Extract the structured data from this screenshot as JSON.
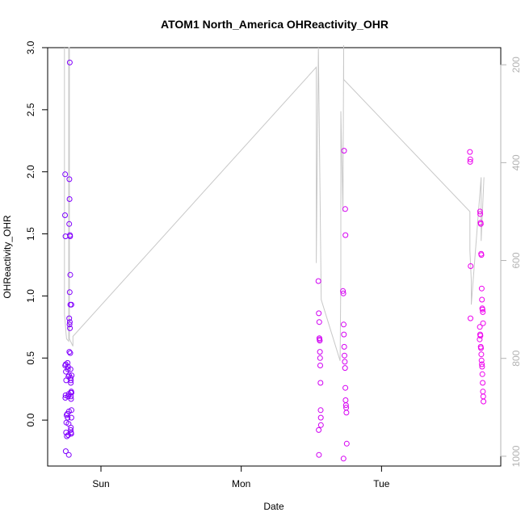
{
  "chart_data": {
    "type": "scatter",
    "title": "ATOM1 North_America OHReactivity_OHR",
    "xlabel": "Date",
    "ylabel": "OHReactivity_OHR",
    "x_ticks": [
      "Sun",
      "Mon",
      "Tue"
    ],
    "x_tick_values": [
      1,
      2,
      3
    ],
    "xlim": [
      0.62,
      3.85
    ],
    "ylim": [
      -0.37,
      3.0
    ],
    "y_ticks": [
      0.0,
      0.5,
      1.0,
      1.5,
      2.0,
      2.5,
      3.0
    ],
    "y_tick_labels": [
      "0.0",
      "0.5",
      "1.0",
      "1.5",
      "2.0",
      "2.5",
      "3.0"
    ],
    "grid": false,
    "right_axis": {
      "reversed": true,
      "lim": [
        165,
        1020
      ],
      "ticks": [
        200,
        400,
        600,
        800,
        1000
      ],
      "tick_labels": [
        "200",
        "400",
        "600",
        "800",
        "1000"
      ],
      "color": "#b3b3b3"
    },
    "colors": {
      "trace": "#c8c8c8",
      "early": "#7b00ff",
      "late": "#ee00ee"
    },
    "series": [
      {
        "kind": "points",
        "color_start": "#7b00ff",
        "color_end": "#ee00ee",
        "x": [
          0.745,
          0.744,
          0.747,
          0.749,
          0.745,
          0.75,
          0.752,
          0.748,
          0.746,
          0.755,
          0.76,
          0.753,
          0.751,
          0.757,
          0.749,
          0.762,
          0.765,
          0.768,
          0.77,
          0.766,
          0.772,
          0.763,
          0.769,
          0.767,
          0.771,
          0.764,
          0.773,
          0.778,
          0.775,
          0.776,
          0.774,
          0.779,
          0.78,
          0.781,
          0.777,
          0.782,
          0.774,
          0.778,
          0.776,
          0.779,
          0.775,
          0.781,
          0.783,
          0.784,
          0.786,
          0.788,
          0.785,
          0.787,
          0.79,
          0.789,
          0.786,
          0.784,
          0.787,
          0.788,
          0.791,
          0.785,
          0.79,
          0.786,
          0.789,
          2.55,
          2.553,
          2.556,
          2.557,
          2.558,
          2.56,
          2.561,
          2.562,
          2.563,
          2.565,
          2.566,
          2.567,
          2.568,
          2.552,
          2.554,
          2.725,
          2.728,
          2.73,
          2.732,
          2.734,
          2.736,
          2.738,
          2.74,
          2.742,
          2.744,
          2.746,
          2.748,
          2.75,
          2.752,
          2.729,
          2.733,
          2.741,
          2.743,
          3.63,
          3.633,
          3.632,
          3.635,
          3.634,
          3.7,
          3.702,
          3.704,
          3.706,
          3.708,
          3.71,
          3.712,
          3.714,
          3.716,
          3.718,
          3.72,
          3.722,
          3.724,
          3.701,
          3.703,
          3.705,
          3.707,
          3.709,
          3.711,
          3.713,
          3.715,
          3.717,
          3.719,
          3.721,
          3.723,
          3.725,
          3.727
        ],
        "y": [
          1.98,
          1.65,
          1.48,
          0.45,
          0.44,
          0.39,
          0.32,
          0.2,
          0.18,
          0.04,
          0.05,
          -0.02,
          -0.1,
          -0.13,
          -0.25,
          0.46,
          0.43,
          0.35,
          0.21,
          0.19,
          0.07,
          0.02,
          -0.03,
          -0.12,
          -0.28,
          0.41,
          0.36,
          2.88,
          1.94,
          1.78,
          1.58,
          1.49,
          1.48,
          1.17,
          1.03,
          0.93,
          0.82,
          0.79,
          0.77,
          0.74,
          0.55,
          0.54,
          0.41,
          0.34,
          0.32,
          0.23,
          0.22,
          0.17,
          0.08,
          0.02,
          -0.06,
          -0.08,
          -0.1,
          -0.11,
          0.36,
          0.3,
          0.22,
          0.19,
          0.93,
          1.12,
          0.86,
          0.79,
          0.66,
          0.65,
          0.64,
          0.55,
          0.5,
          0.44,
          0.3,
          0.08,
          0.02,
          -0.04,
          -0.08,
          -0.28,
          1.04,
          1.02,
          0.77,
          0.69,
          0.59,
          0.52,
          0.47,
          0.42,
          0.26,
          0.16,
          0.12,
          0.1,
          0.06,
          -0.19,
          -0.31,
          2.17,
          1.7,
          1.49,
          2.16,
          2.1,
          2.08,
          1.24,
          0.82,
          0.65,
          1.68,
          1.66,
          1.59,
          1.58,
          1.34,
          1.33,
          1.06,
          0.97,
          0.9,
          0.89,
          0.87,
          0.78,
          0.75,
          0.69,
          0.68,
          0.59,
          0.58,
          0.53,
          0.48,
          0.45,
          0.43,
          0.37,
          0.3,
          0.23,
          0.19,
          0.15
        ]
      },
      {
        "kind": "line",
        "color": "#c8c8c8",
        "uses_right_axis": true,
        "x": [
          0.74,
          0.74,
          0.755,
          0.77,
          0.77,
          0.775,
          0.775,
          0.8,
          0.8,
          2.535,
          2.535,
          2.55,
          2.55,
          2.57,
          2.705,
          2.71,
          2.71,
          2.725,
          2.725,
          2.73,
          2.73,
          3.63,
          3.63,
          3.64,
          3.64,
          3.71,
          3.71,
          3.73
        ],
        "y": [
          165,
          710,
          760,
          765,
          165,
          165,
          760,
          775,
          755,
          205,
          605,
          165,
          165,
          680,
          805,
          630,
          295,
          500,
          500,
          160,
          230,
          500,
          580,
          640,
          690,
          430,
          560,
          430
        ]
      }
    ]
  }
}
